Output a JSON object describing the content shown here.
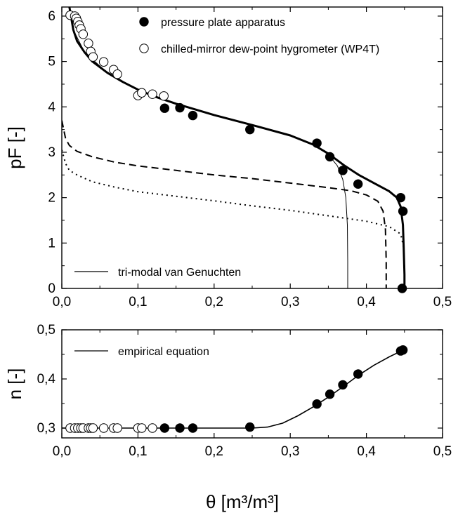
{
  "chart_data": [
    {
      "type": "scatter",
      "id": "top",
      "xlabel": "",
      "ylabel": "pF [-]",
      "xlim": [
        0,
        0.5
      ],
      "ylim": [
        0,
        6.2
      ],
      "xticks": [
        0,
        0.1,
        0.2,
        0.3,
        0.4,
        0.5
      ],
      "xtick_labels": [
        "0,0",
        "0,1",
        "0,2",
        "0,3",
        "0,4",
        "0,5"
      ],
      "yticks": [
        0,
        1,
        2,
        3,
        4,
        5,
        6
      ],
      "ytick_labels": [
        "0",
        "1",
        "2",
        "3",
        "4",
        "5",
        "6"
      ],
      "grid": false,
      "legend_position": "top-right",
      "legend": [
        {
          "label": "pressure plate apparatus",
          "marker": "filled-circle"
        },
        {
          "label": "chilled-mirror dew-point hygrometer (WP4T)",
          "marker": "open-circle"
        }
      ],
      "line_legend": {
        "label": "tri-modal van Genuchten",
        "position": "bottom-left"
      },
      "series": [
        {
          "marker": "filled-circle",
          "points": [
            [
              0.135,
              3.97
            ],
            [
              0.155,
              3.98
            ],
            [
              0.172,
              3.81
            ],
            [
              0.247,
              3.5
            ],
            [
              0.335,
              3.2
            ],
            [
              0.352,
              2.9
            ],
            [
              0.369,
              2.6
            ],
            [
              0.389,
              2.3
            ],
            [
              0.445,
              2.0
            ],
            [
              0.448,
              1.7
            ],
            [
              0.447,
              0.0
            ]
          ]
        },
        {
          "marker": "open-circle",
          "points": [
            [
              0.011,
              6.02
            ],
            [
              0.017,
              6.0
            ],
            [
              0.019,
              5.95
            ],
            [
              0.021,
              5.88
            ],
            [
              0.023,
              5.8
            ],
            [
              0.025,
              5.72
            ],
            [
              0.028,
              5.6
            ],
            [
              0.035,
              5.4
            ],
            [
              0.038,
              5.22
            ],
            [
              0.041,
              5.1
            ],
            [
              0.055,
              4.99
            ],
            [
              0.068,
              4.82
            ],
            [
              0.073,
              4.72
            ],
            [
              0.1,
              4.25
            ],
            [
              0.105,
              4.31
            ],
            [
              0.119,
              4.28
            ],
            [
              0.134,
              4.24
            ]
          ]
        },
        {
          "style": "thick-solid",
          "points": [
            [
              0.01,
              6.2
            ],
            [
              0.012,
              6.0
            ],
            [
              0.015,
              5.7
            ],
            [
              0.02,
              5.45
            ],
            [
              0.03,
              5.2
            ],
            [
              0.04,
              5.0
            ],
            [
              0.06,
              4.75
            ],
            [
              0.08,
              4.55
            ],
            [
              0.1,
              4.38
            ],
            [
              0.12,
              4.24
            ],
            [
              0.15,
              4.07
            ],
            [
              0.2,
              3.82
            ],
            [
              0.25,
              3.6
            ],
            [
              0.3,
              3.37
            ],
            [
              0.33,
              3.17
            ],
            [
              0.35,
              2.97
            ],
            [
              0.37,
              2.72
            ],
            [
              0.39,
              2.5
            ],
            [
              0.41,
              2.32
            ],
            [
              0.43,
              2.14
            ],
            [
              0.44,
              2.0
            ],
            [
              0.445,
              1.8
            ],
            [
              0.448,
              1.4
            ],
            [
              0.449,
              0.9
            ],
            [
              0.45,
              0.3
            ],
            [
              0.45,
              0.0
            ]
          ]
        },
        {
          "style": "thin-solid",
          "points": [
            [
              0.01,
              6.2
            ],
            [
              0.015,
              5.7
            ],
            [
              0.03,
              5.2
            ],
            [
              0.06,
              4.75
            ],
            [
              0.1,
              4.38
            ],
            [
              0.15,
              4.07
            ],
            [
              0.2,
              3.82
            ],
            [
              0.25,
              3.6
            ],
            [
              0.3,
              3.37
            ],
            [
              0.33,
              3.17
            ],
            [
              0.35,
              2.95
            ],
            [
              0.362,
              2.7
            ],
            [
              0.369,
              2.4
            ],
            [
              0.373,
              2.0
            ],
            [
              0.375,
              1.4
            ],
            [
              0.3755,
              0.6
            ],
            [
              0.3755,
              0.0
            ]
          ]
        },
        {
          "style": "dashed",
          "points": [
            [
              0.0,
              3.7
            ],
            [
              0.005,
              3.3
            ],
            [
              0.01,
              3.15
            ],
            [
              0.02,
              3.02
            ],
            [
              0.04,
              2.9
            ],
            [
              0.07,
              2.78
            ],
            [
              0.1,
              2.7
            ],
            [
              0.15,
              2.6
            ],
            [
              0.2,
              2.5
            ],
            [
              0.25,
              2.42
            ],
            [
              0.3,
              2.32
            ],
            [
              0.35,
              2.22
            ],
            [
              0.38,
              2.15
            ],
            [
              0.4,
              2.06
            ],
            [
              0.415,
              1.92
            ],
            [
              0.422,
              1.7
            ],
            [
              0.425,
              1.3
            ],
            [
              0.426,
              0.6
            ],
            [
              0.426,
              0.0
            ]
          ]
        },
        {
          "style": "dotted",
          "points": [
            [
              0.0,
              3.05
            ],
            [
              0.005,
              2.75
            ],
            [
              0.01,
              2.6
            ],
            [
              0.02,
              2.5
            ],
            [
              0.04,
              2.35
            ],
            [
              0.07,
              2.23
            ],
            [
              0.1,
              2.13
            ],
            [
              0.15,
              2.03
            ],
            [
              0.2,
              1.93
            ],
            [
              0.25,
              1.82
            ],
            [
              0.3,
              1.72
            ],
            [
              0.35,
              1.6
            ],
            [
              0.4,
              1.48
            ],
            [
              0.43,
              1.36
            ],
            [
              0.445,
              1.2
            ],
            [
              0.449,
              0.9
            ],
            [
              0.45,
              0.5
            ],
            [
              0.45,
              0.0
            ]
          ]
        }
      ]
    },
    {
      "type": "scatter",
      "id": "bottom",
      "xlabel": "θ [m³/m³]",
      "ylabel": "n [-]",
      "xlim": [
        0,
        0.5
      ],
      "ylim": [
        0.28,
        0.5
      ],
      "xticks": [
        0,
        0.1,
        0.2,
        0.3,
        0.4,
        0.5
      ],
      "xtick_labels": [
        "0,0",
        "0,1",
        "0,2",
        "0,3",
        "0,4",
        "0,5"
      ],
      "yticks": [
        0.3,
        0.4,
        0.5
      ],
      "ytick_labels": [
        "0,3",
        "0,4",
        "0,5"
      ],
      "grid": false,
      "line_legend": {
        "label": "empirical equation",
        "position": "top-left"
      },
      "series": [
        {
          "marker": "open-circle",
          "points": [
            [
              0.011,
              0.3
            ],
            [
              0.017,
              0.3
            ],
            [
              0.021,
              0.3
            ],
            [
              0.025,
              0.3
            ],
            [
              0.028,
              0.3
            ],
            [
              0.035,
              0.3
            ],
            [
              0.038,
              0.3
            ],
            [
              0.041,
              0.3
            ],
            [
              0.055,
              0.3
            ],
            [
              0.068,
              0.3
            ],
            [
              0.073,
              0.3
            ],
            [
              0.1,
              0.3
            ],
            [
              0.105,
              0.3
            ],
            [
              0.119,
              0.3
            ]
          ]
        },
        {
          "marker": "filled-circle",
          "points": [
            [
              0.135,
              0.3
            ],
            [
              0.155,
              0.3
            ],
            [
              0.172,
              0.3
            ],
            [
              0.247,
              0.302
            ],
            [
              0.335,
              0.349
            ],
            [
              0.352,
              0.369
            ],
            [
              0.369,
              0.388
            ],
            [
              0.389,
              0.41
            ],
            [
              0.445,
              0.457
            ],
            [
              0.448,
              0.459
            ]
          ]
        },
        {
          "style": "solid",
          "points": [
            [
              0.0,
              0.3
            ],
            [
              0.25,
              0.3
            ],
            [
              0.27,
              0.302
            ],
            [
              0.29,
              0.31
            ],
            [
              0.31,
              0.325
            ],
            [
              0.33,
              0.343
            ],
            [
              0.35,
              0.363
            ],
            [
              0.37,
              0.385
            ],
            [
              0.39,
              0.408
            ],
            [
              0.41,
              0.428
            ],
            [
              0.43,
              0.445
            ],
            [
              0.45,
              0.46
            ]
          ]
        }
      ]
    }
  ]
}
